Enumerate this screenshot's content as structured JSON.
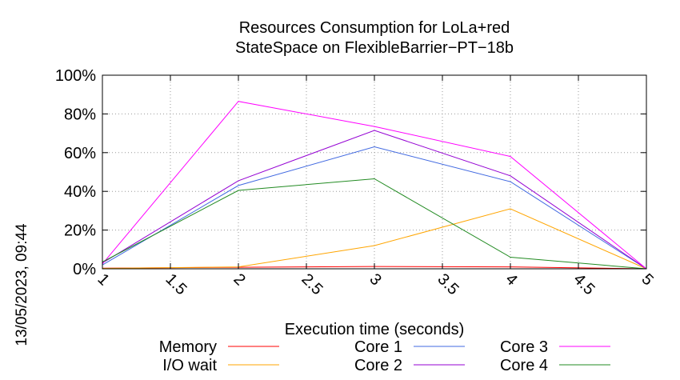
{
  "chart_data": {
    "type": "line",
    "title_lines": [
      "Resources Consumption for LoLa+red",
      "StateSpace on FlexibleBarrier−PT−18b"
    ],
    "xlabel": "Execution time (seconds)",
    "ylabel": "",
    "xlim": [
      1,
      5
    ],
    "ylim": [
      0,
      100
    ],
    "x_ticks": [
      1,
      1.5,
      2,
      2.5,
      3,
      3.5,
      4,
      4.5,
      5
    ],
    "x_tick_labels": [
      "1",
      "1.5",
      "2",
      "2.5",
      "3",
      "3.5",
      "4",
      "4.5",
      "5"
    ],
    "y_ticks": [
      0,
      20,
      40,
      60,
      80,
      100
    ],
    "y_tick_labels": [
      "0%",
      "20%",
      "40%",
      "60%",
      "80%",
      "100%"
    ],
    "grid": true,
    "legend_position": "bottom",
    "timestamp": "13/05/2023, 09:44",
    "x": [
      1,
      2,
      3,
      4,
      5
    ],
    "series": [
      {
        "name": "Memory",
        "color": "#ff0000",
        "values": [
          0.3,
          0.8,
          1.2,
          1.0,
          0
        ]
      },
      {
        "name": "I/O wait",
        "color": "#ffa500",
        "values": [
          0.2,
          1.0,
          12,
          31,
          0
        ]
      },
      {
        "name": "Core 1",
        "color": "#4169e1",
        "values": [
          2,
          43,
          63,
          45,
          0
        ]
      },
      {
        "name": "Core 2",
        "color": "#9400d3",
        "values": [
          3,
          45.5,
          71.5,
          48,
          0
        ]
      },
      {
        "name": "Core 3",
        "color": "#ff00ff",
        "values": [
          2.5,
          86.5,
          73.5,
          58,
          0
        ]
      },
      {
        "name": "Core 4",
        "color": "#228b22",
        "values": [
          3.5,
          40.5,
          46.5,
          6,
          0
        ]
      }
    ]
  }
}
